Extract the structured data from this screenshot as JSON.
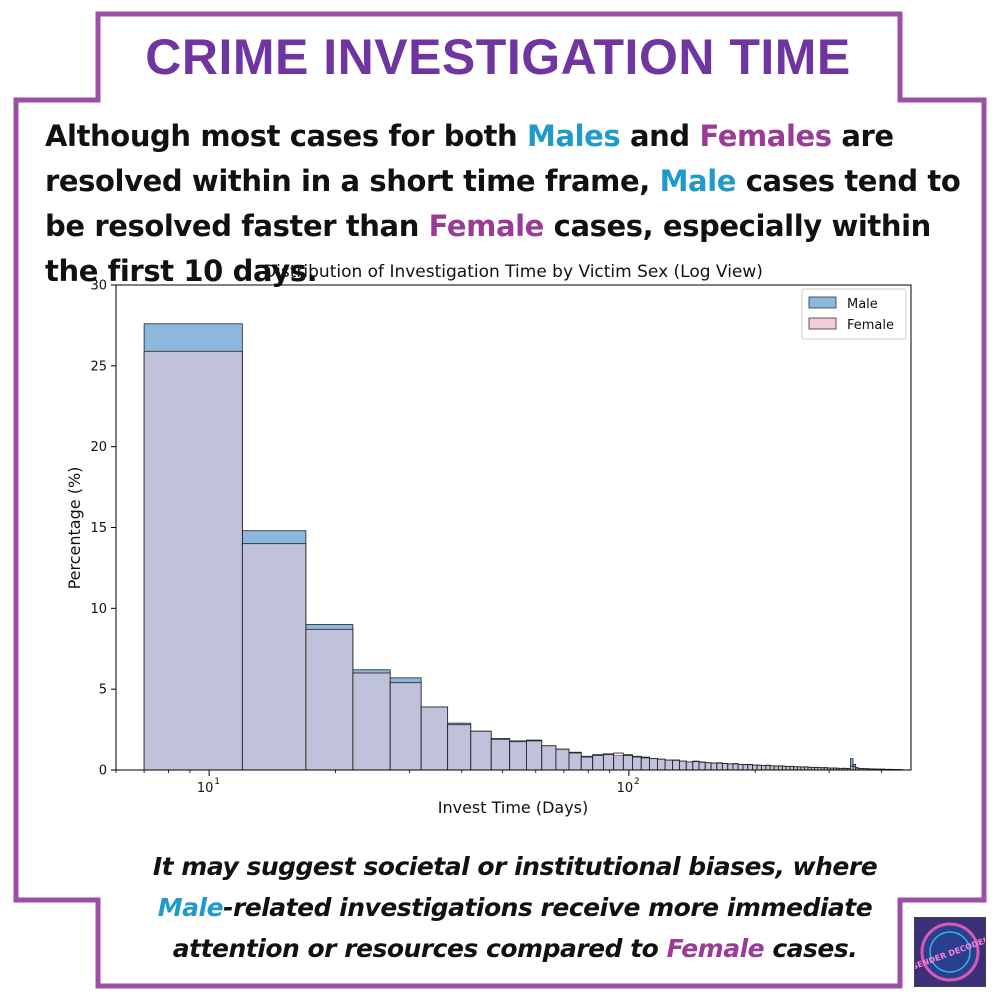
{
  "header": {
    "title": "CRIME INVESTIGATION TIME"
  },
  "intro": {
    "p1": "Although most cases for both ",
    "males": "Males",
    "p2": " and ",
    "females": "Females",
    "p3": " are resolved within in a short time frame, ",
    "male": "Male",
    "p4": " cases tend to be resolved faster than ",
    "female": "Female",
    "p5": " cases, especially within the first 10 days."
  },
  "closing": {
    "p1": "It may suggest societal or institutional biases, where ",
    "male": "Male",
    "p2": "-related investigations receive more immediate attention or resources compared to ",
    "female": "Female",
    "p3": " cases."
  },
  "logo": {
    "text": "GENDER DECODED"
  },
  "colors": {
    "male": "#1f9ac9",
    "female": "#9a3c96",
    "title": "#6f35a0",
    "border": "#9b4fa6"
  },
  "chart_data": {
    "type": "bar",
    "title": "Distribution of Investigation Time by Victim Sex (Log View)",
    "xlabel": "Invest Time (Days)",
    "ylabel": "Percentage (%)",
    "xscale": "log",
    "xlim": [
      6,
      470
    ],
    "ylim": [
      0,
      30
    ],
    "yticks": [
      0,
      5,
      10,
      15,
      20,
      25,
      30
    ],
    "xticks": [
      {
        "value": 10,
        "base": "10",
        "exp": "1"
      },
      {
        "value": 100,
        "base": "10",
        "exp": "2"
      }
    ],
    "legend_position": "top-right",
    "grid": false,
    "series": [
      {
        "name": "Male",
        "color": "#8bb8dc",
        "bins": [
          [
            7,
            12,
            27.6
          ],
          [
            12,
            17,
            14.8
          ],
          [
            17,
            22,
            9.0
          ],
          [
            22,
            27,
            6.2
          ],
          [
            27,
            32,
            5.7
          ],
          [
            32,
            37,
            3.9
          ],
          [
            37,
            42,
            2.9
          ],
          [
            42,
            47,
            2.4
          ],
          [
            47,
            52,
            1.95
          ],
          [
            52,
            57,
            1.8
          ],
          [
            57,
            62,
            1.85
          ],
          [
            62,
            67,
            1.5
          ],
          [
            67,
            72,
            1.25
          ],
          [
            72,
            77,
            1.1
          ],
          [
            77,
            82,
            0.85
          ],
          [
            82,
            87,
            0.95
          ],
          [
            87,
            92,
            1.0
          ],
          [
            92,
            97,
            0.9
          ],
          [
            97,
            102,
            0.95
          ],
          [
            102,
            107,
            0.85
          ],
          [
            107,
            112,
            0.8
          ],
          [
            112,
            117,
            0.7
          ],
          [
            117,
            122,
            0.65
          ],
          [
            122,
            127,
            0.6
          ],
          [
            127,
            132,
            0.62
          ],
          [
            132,
            137,
            0.55
          ],
          [
            137,
            142,
            0.5
          ],
          [
            142,
            147,
            0.55
          ],
          [
            147,
            152,
            0.5
          ],
          [
            152,
            157,
            0.45
          ],
          [
            157,
            162,
            0.42
          ],
          [
            162,
            167,
            0.45
          ],
          [
            167,
            172,
            0.4
          ],
          [
            172,
            177,
            0.38
          ],
          [
            177,
            182,
            0.4
          ],
          [
            182,
            187,
            0.35
          ],
          [
            187,
            192,
            0.34
          ],
          [
            192,
            197,
            0.35
          ],
          [
            197,
            202,
            0.3
          ],
          [
            202,
            207,
            0.3
          ],
          [
            207,
            212,
            0.28
          ],
          [
            212,
            217,
            0.3
          ],
          [
            217,
            222,
            0.26
          ],
          [
            222,
            227,
            0.25
          ],
          [
            227,
            232,
            0.26
          ],
          [
            232,
            237,
            0.24
          ],
          [
            237,
            242,
            0.22
          ],
          [
            242,
            247,
            0.23
          ],
          [
            247,
            252,
            0.2
          ],
          [
            252,
            257,
            0.2
          ],
          [
            257,
            262,
            0.18
          ],
          [
            262,
            267,
            0.2
          ],
          [
            267,
            272,
            0.17
          ],
          [
            272,
            277,
            0.16
          ],
          [
            277,
            282,
            0.17
          ],
          [
            282,
            287,
            0.15
          ],
          [
            287,
            292,
            0.14
          ],
          [
            292,
            297,
            0.15
          ],
          [
            297,
            302,
            0.13
          ],
          [
            302,
            307,
            0.12
          ],
          [
            307,
            312,
            0.13
          ],
          [
            312,
            317,
            0.11
          ],
          [
            317,
            322,
            0.1
          ],
          [
            322,
            327,
            0.11
          ],
          [
            327,
            332,
            0.1
          ],
          [
            332,
            337,
            0.09
          ],
          [
            337,
            342,
            0.7
          ],
          [
            342,
            347,
            0.35
          ],
          [
            347,
            352,
            0.15
          ],
          [
            352,
            357,
            0.1
          ],
          [
            357,
            362,
            0.09
          ],
          [
            362,
            367,
            0.08
          ],
          [
            367,
            372,
            0.08
          ],
          [
            372,
            377,
            0.07
          ],
          [
            377,
            382,
            0.07
          ],
          [
            382,
            387,
            0.06
          ],
          [
            387,
            392,
            0.06
          ],
          [
            392,
            397,
            0.05
          ],
          [
            397,
            402,
            0.05
          ],
          [
            402,
            407,
            0.05
          ],
          [
            407,
            412,
            0.04
          ],
          [
            412,
            417,
            0.04
          ],
          [
            417,
            422,
            0.04
          ],
          [
            422,
            427,
            0.03
          ],
          [
            427,
            432,
            0.03
          ],
          [
            432,
            437,
            0.03
          ],
          [
            437,
            442,
            0.02
          ]
        ]
      },
      {
        "name": "Female",
        "color": "#f4ccd8",
        "bins": [
          [
            7,
            12,
            25.9
          ],
          [
            12,
            17,
            14.0
          ],
          [
            17,
            22,
            8.7
          ],
          [
            22,
            27,
            6.0
          ],
          [
            27,
            32,
            5.4
          ],
          [
            32,
            37,
            3.9
          ],
          [
            37,
            42,
            2.8
          ],
          [
            42,
            47,
            2.4
          ],
          [
            47,
            52,
            1.9
          ],
          [
            52,
            57,
            1.75
          ],
          [
            57,
            62,
            1.8
          ],
          [
            62,
            67,
            1.5
          ],
          [
            67,
            72,
            1.3
          ],
          [
            72,
            77,
            1.05
          ],
          [
            77,
            82,
            0.8
          ],
          [
            82,
            87,
            0.9
          ],
          [
            87,
            92,
            0.95
          ],
          [
            92,
            97,
            1.05
          ],
          [
            97,
            102,
            0.9
          ],
          [
            102,
            107,
            0.8
          ],
          [
            107,
            112,
            0.75
          ],
          [
            112,
            117,
            0.72
          ],
          [
            117,
            122,
            0.68
          ],
          [
            122,
            127,
            0.62
          ],
          [
            127,
            132,
            0.6
          ],
          [
            132,
            137,
            0.55
          ],
          [
            137,
            142,
            0.5
          ],
          [
            142,
            147,
            0.52
          ],
          [
            147,
            152,
            0.48
          ],
          [
            152,
            157,
            0.45
          ],
          [
            157,
            162,
            0.43
          ],
          [
            162,
            167,
            0.43
          ],
          [
            167,
            172,
            0.4
          ],
          [
            172,
            177,
            0.38
          ],
          [
            177,
            182,
            0.38
          ],
          [
            182,
            187,
            0.35
          ],
          [
            187,
            192,
            0.33
          ],
          [
            192,
            197,
            0.33
          ],
          [
            197,
            202,
            0.3
          ],
          [
            202,
            207,
            0.29
          ],
          [
            207,
            212,
            0.28
          ],
          [
            212,
            217,
            0.28
          ],
          [
            217,
            222,
            0.26
          ],
          [
            222,
            227,
            0.25
          ],
          [
            227,
            232,
            0.25
          ],
          [
            232,
            237,
            0.23
          ],
          [
            237,
            242,
            0.22
          ],
          [
            242,
            247,
            0.22
          ],
          [
            247,
            252,
            0.2
          ],
          [
            252,
            257,
            0.19
          ],
          [
            257,
            262,
            0.18
          ],
          [
            262,
            267,
            0.19
          ],
          [
            267,
            272,
            0.17
          ],
          [
            272,
            277,
            0.16
          ],
          [
            277,
            282,
            0.16
          ],
          [
            282,
            287,
            0.15
          ],
          [
            287,
            292,
            0.14
          ],
          [
            292,
            297,
            0.14
          ],
          [
            297,
            302,
            0.13
          ],
          [
            302,
            307,
            0.12
          ],
          [
            307,
            312,
            0.12
          ],
          [
            312,
            317,
            0.11
          ],
          [
            317,
            322,
            0.1
          ],
          [
            322,
            327,
            0.1
          ],
          [
            327,
            332,
            0.1
          ],
          [
            332,
            337,
            0.09
          ],
          [
            337,
            342,
            0.25
          ],
          [
            342,
            347,
            0.2
          ],
          [
            347,
            352,
            0.12
          ],
          [
            352,
            357,
            0.1
          ],
          [
            357,
            362,
            0.09
          ],
          [
            362,
            367,
            0.08
          ],
          [
            367,
            372,
            0.08
          ],
          [
            372,
            377,
            0.07
          ],
          [
            377,
            382,
            0.07
          ],
          [
            382,
            387,
            0.06
          ],
          [
            387,
            392,
            0.06
          ],
          [
            392,
            397,
            0.05
          ],
          [
            397,
            402,
            0.05
          ],
          [
            402,
            407,
            0.05
          ],
          [
            407,
            412,
            0.04
          ],
          [
            412,
            417,
            0.04
          ],
          [
            417,
            422,
            0.04
          ],
          [
            422,
            427,
            0.04
          ],
          [
            427,
            432,
            0.03
          ],
          [
            432,
            437,
            0.03
          ],
          [
            437,
            442,
            0.03
          ],
          [
            442,
            447,
            0.03
          ],
          [
            447,
            452,
            0.02
          ]
        ]
      }
    ]
  }
}
